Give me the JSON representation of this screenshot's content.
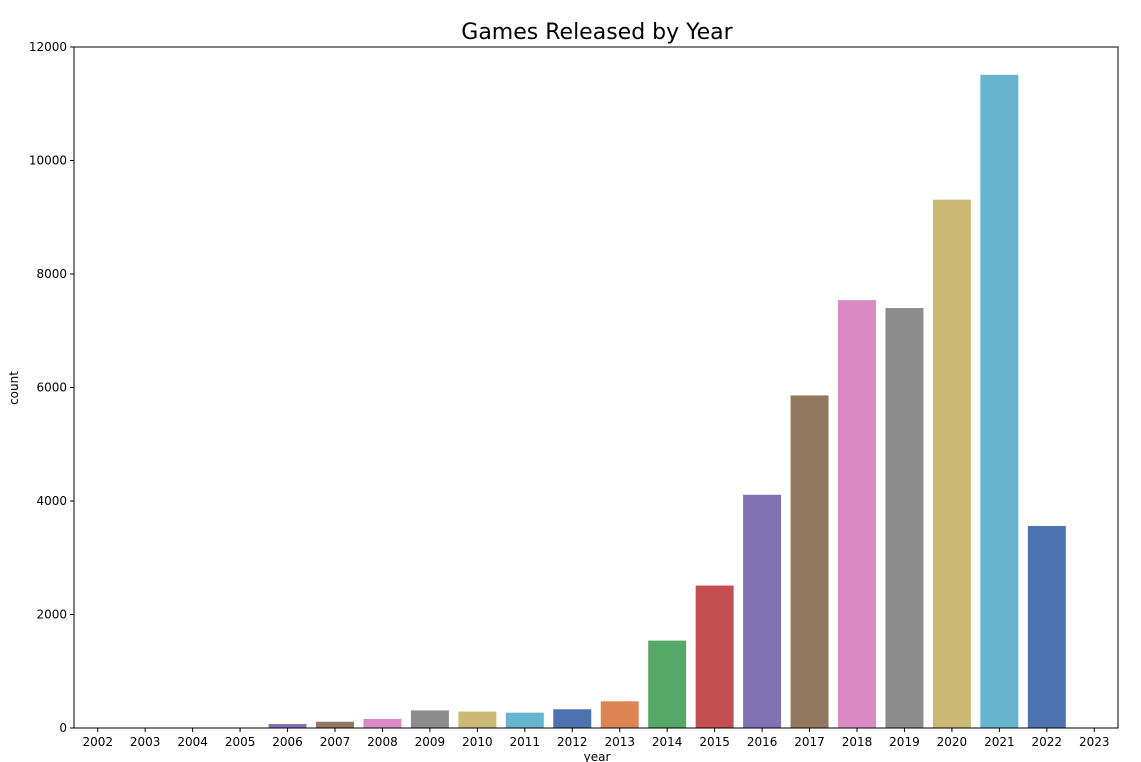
{
  "chart_data": {
    "type": "bar",
    "title": "Games Released by Year",
    "xlabel": "year",
    "ylabel": "count",
    "ylim": [
      0,
      12000
    ],
    "yticks": [
      0,
      2000,
      4000,
      6000,
      8000,
      10000,
      12000
    ],
    "grid": false,
    "categories": [
      "2002",
      "2003",
      "2004",
      "2005",
      "2006",
      "2007",
      "2008",
      "2009",
      "2010",
      "2011",
      "2012",
      "2013",
      "2014",
      "2015",
      "2016",
      "2017",
      "2018",
      "2019",
      "2020",
      "2021",
      "2022",
      "2023"
    ],
    "values": [
      2,
      3,
      5,
      8,
      70,
      110,
      160,
      310,
      290,
      270,
      330,
      470,
      1540,
      2510,
      4110,
      5860,
      7540,
      7400,
      9310,
      11510,
      3560,
      2
    ],
    "colors": [
      "#4c72b0",
      "#dd8452",
      "#55a868",
      "#c44e52",
      "#8172b3",
      "#937860",
      "#da8bc3",
      "#8c8c8c",
      "#ccb974",
      "#64b5cd",
      "#4c72b0",
      "#dd8452",
      "#55a868",
      "#c44e52",
      "#8172b3",
      "#937860",
      "#da8bc3",
      "#8c8c8c",
      "#ccb974",
      "#64b5cd",
      "#4c72b0",
      "#dd8452"
    ]
  }
}
